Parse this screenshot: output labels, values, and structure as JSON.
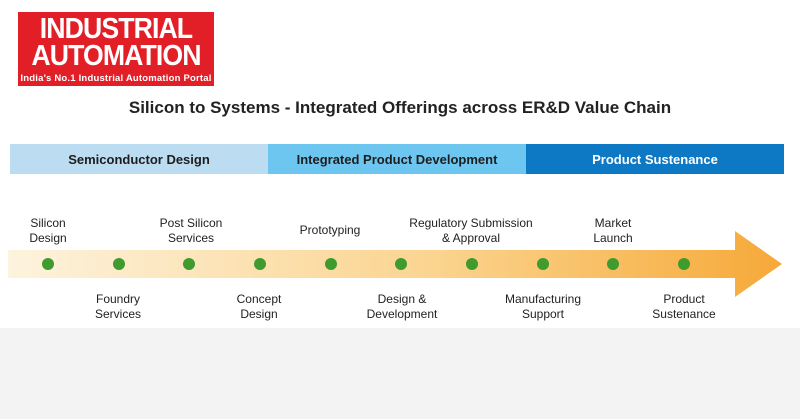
{
  "header": {
    "logo_line1": "INDUSTRIAL",
    "logo_line2": "AUTOMATION",
    "logo_tagline": "India's No.1 Industrial Automation Portal"
  },
  "diagram": {
    "title": "Silicon to Systems - Integrated Offerings across ER&D Value Chain",
    "phases": [
      {
        "label": "Semiconductor Design",
        "color": "#bcdcf2"
      },
      {
        "label": "Integrated Product Development",
        "color": "#6cc6ef"
      },
      {
        "label": "Product Sustenance",
        "color": "#0d78c4"
      }
    ],
    "steps": [
      {
        "label": "Silicon\nDesign"
      },
      {
        "label": "Foundry\nServices"
      },
      {
        "label": "Post Silicon\nServices"
      },
      {
        "label": "Concept\nDesign"
      },
      {
        "label": "Prototyping"
      },
      {
        "label": "Design &\nDevelopment"
      },
      {
        "label": "Regulatory Submission\n& Approval"
      },
      {
        "label": "Manufacturing\nSupport"
      },
      {
        "label": "Market\nLaunch"
      },
      {
        "label": "Product\nSustenance"
      }
    ],
    "colors": {
      "arrow_start": "#fdf3de",
      "arrow_end": "#f6a938",
      "milestone_dot": "#3f9b2e"
    }
  }
}
